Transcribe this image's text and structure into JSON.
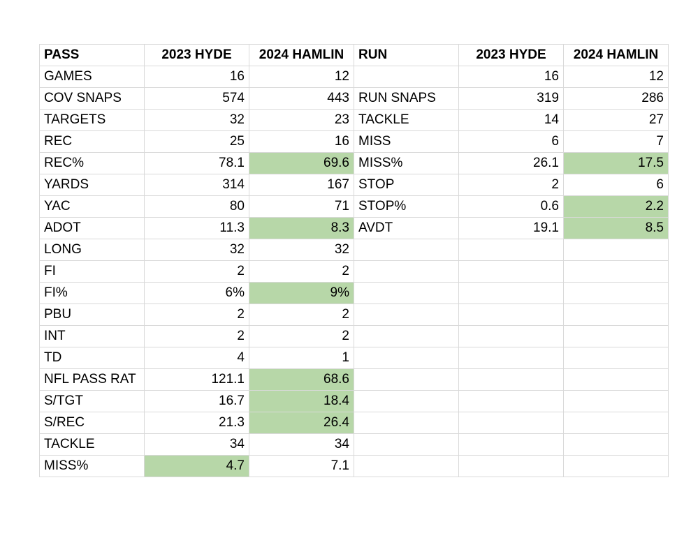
{
  "header": [
    "PASS",
    "2023 HYDE",
    "2024 HAMLIN",
    "RUN",
    "2023 HYDE",
    "2024 HAMLIN"
  ],
  "highlight_color": "#b7d7a8",
  "rows": [
    {
      "cells": [
        "GAMES",
        "16",
        "12",
        "",
        "16",
        "12"
      ],
      "highlight": []
    },
    {
      "cells": [
        "COV SNAPS",
        "574",
        "443",
        "RUN SNAPS",
        "319",
        "286"
      ],
      "highlight": []
    },
    {
      "cells": [
        "TARGETS",
        "32",
        "23",
        "TACKLE",
        "14",
        "27"
      ],
      "highlight": []
    },
    {
      "cells": [
        "REC",
        "25",
        "16",
        "MISS",
        "6",
        "7"
      ],
      "highlight": []
    },
    {
      "cells": [
        "REC%",
        "78.1",
        "69.6",
        "MISS%",
        "26.1",
        "17.5"
      ],
      "highlight": [
        2,
        5
      ]
    },
    {
      "cells": [
        "YARDS",
        "314",
        "167",
        "STOP",
        "2",
        "6"
      ],
      "highlight": []
    },
    {
      "cells": [
        "YAC",
        "80",
        "71",
        "STOP%",
        "0.6",
        "2.2"
      ],
      "highlight": [
        5
      ]
    },
    {
      "cells": [
        "ADOT",
        "11.3",
        "8.3",
        "AVDT",
        "19.1",
        "8.5"
      ],
      "highlight": [
        2,
        5
      ]
    },
    {
      "cells": [
        "LONG",
        "32",
        "32",
        "",
        "",
        ""
      ],
      "highlight": []
    },
    {
      "cells": [
        "FI",
        "2",
        "2",
        "",
        "",
        ""
      ],
      "highlight": []
    },
    {
      "cells": [
        "FI%",
        "6%",
        "9%",
        "",
        "",
        ""
      ],
      "highlight": [
        2
      ]
    },
    {
      "cells": [
        "PBU",
        "2",
        "2",
        "",
        "",
        ""
      ],
      "highlight": []
    },
    {
      "cells": [
        "INT",
        "2",
        "2",
        "",
        "",
        ""
      ],
      "highlight": []
    },
    {
      "cells": [
        "TD",
        "4",
        "1",
        "",
        "",
        ""
      ],
      "highlight": []
    },
    {
      "cells": [
        "NFL PASS RAT",
        "121.1",
        "68.6",
        "",
        "",
        ""
      ],
      "highlight": [
        2
      ]
    },
    {
      "cells": [
        "S/TGT",
        "16.7",
        "18.4",
        "",
        "",
        ""
      ],
      "highlight": [
        2
      ]
    },
    {
      "cells": [
        "S/REC",
        "21.3",
        "26.4",
        "",
        "",
        ""
      ],
      "highlight": [
        2
      ]
    },
    {
      "cells": [
        "TACKLE",
        "34",
        "34",
        "",
        "",
        ""
      ],
      "highlight": []
    },
    {
      "cells": [
        "MISS%",
        "4.7",
        "7.1",
        "",
        "",
        ""
      ],
      "highlight": [
        1
      ]
    }
  ]
}
